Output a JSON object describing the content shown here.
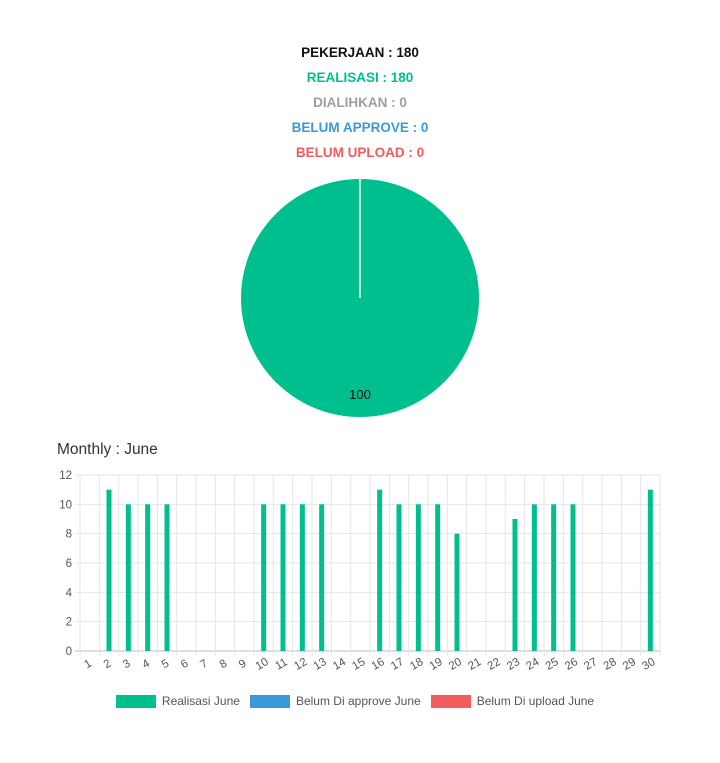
{
  "summary": {
    "pekerjaan": "PEKERJAAN : 180",
    "realisasi": "REALISASI : 180",
    "dialihkan": "DIALIHKAN : 0",
    "belum_approve": "BELUM APPROVE : 0",
    "belum_upload": "BELUM UPLOAD : 0"
  },
  "monthly_title": "Monthly : June",
  "colors": {
    "realisasi": "#00bf8f",
    "belum_approve": "#3a9ad9",
    "belum_upload": "#f25c5c"
  },
  "chart_data": [
    {
      "type": "pie",
      "slices": [
        {
          "value": 100,
          "label": "100",
          "color": "#00bf8f"
        }
      ]
    },
    {
      "type": "bar",
      "title": "Monthly : June",
      "categories": [
        "1",
        "2",
        "3",
        "4",
        "5",
        "6",
        "7",
        "8",
        "9",
        "10",
        "11",
        "12",
        "13",
        "14",
        "15",
        "16",
        "17",
        "18",
        "19",
        "20",
        "21",
        "22",
        "23",
        "24",
        "25",
        "26",
        "27",
        "28",
        "29",
        "30"
      ],
      "series": [
        {
          "name": "Realisasi June",
          "color": "#00bf8f",
          "values": [
            0,
            11,
            10,
            10,
            10,
            0,
            0,
            0,
            0,
            10,
            10,
            10,
            10,
            0,
            0,
            11,
            10,
            10,
            10,
            8,
            0,
            0,
            9,
            10,
            10,
            10,
            0,
            0,
            0,
            11
          ]
        },
        {
          "name": "Belum Di approve June",
          "color": "#3a9ad9",
          "values": [
            0,
            0,
            0,
            0,
            0,
            0,
            0,
            0,
            0,
            0,
            0,
            0,
            0,
            0,
            0,
            0,
            0,
            0,
            0,
            0,
            0,
            0,
            0,
            0,
            0,
            0,
            0,
            0,
            0,
            0
          ]
        },
        {
          "name": "Belum Di upload June",
          "color": "#f25c5c",
          "values": [
            0,
            0,
            0,
            0,
            0,
            0,
            0,
            0,
            0,
            0,
            0,
            0,
            0,
            0,
            0,
            0,
            0,
            0,
            0,
            0,
            0,
            0,
            0,
            0,
            0,
            0,
            0,
            0,
            0,
            0
          ]
        }
      ],
      "yticks": [
        "0",
        "2",
        "4",
        "6",
        "8",
        "10",
        "12"
      ],
      "ylim": [
        0,
        12
      ],
      "grid": true,
      "legend": "bottom"
    }
  ],
  "legend": [
    {
      "label": "Realisasi June",
      "color": "#00bf8f"
    },
    {
      "label": "Belum Di approve June",
      "color": "#3a9ad9"
    },
    {
      "label": "Belum Di upload June",
      "color": "#f25c5c"
    }
  ]
}
